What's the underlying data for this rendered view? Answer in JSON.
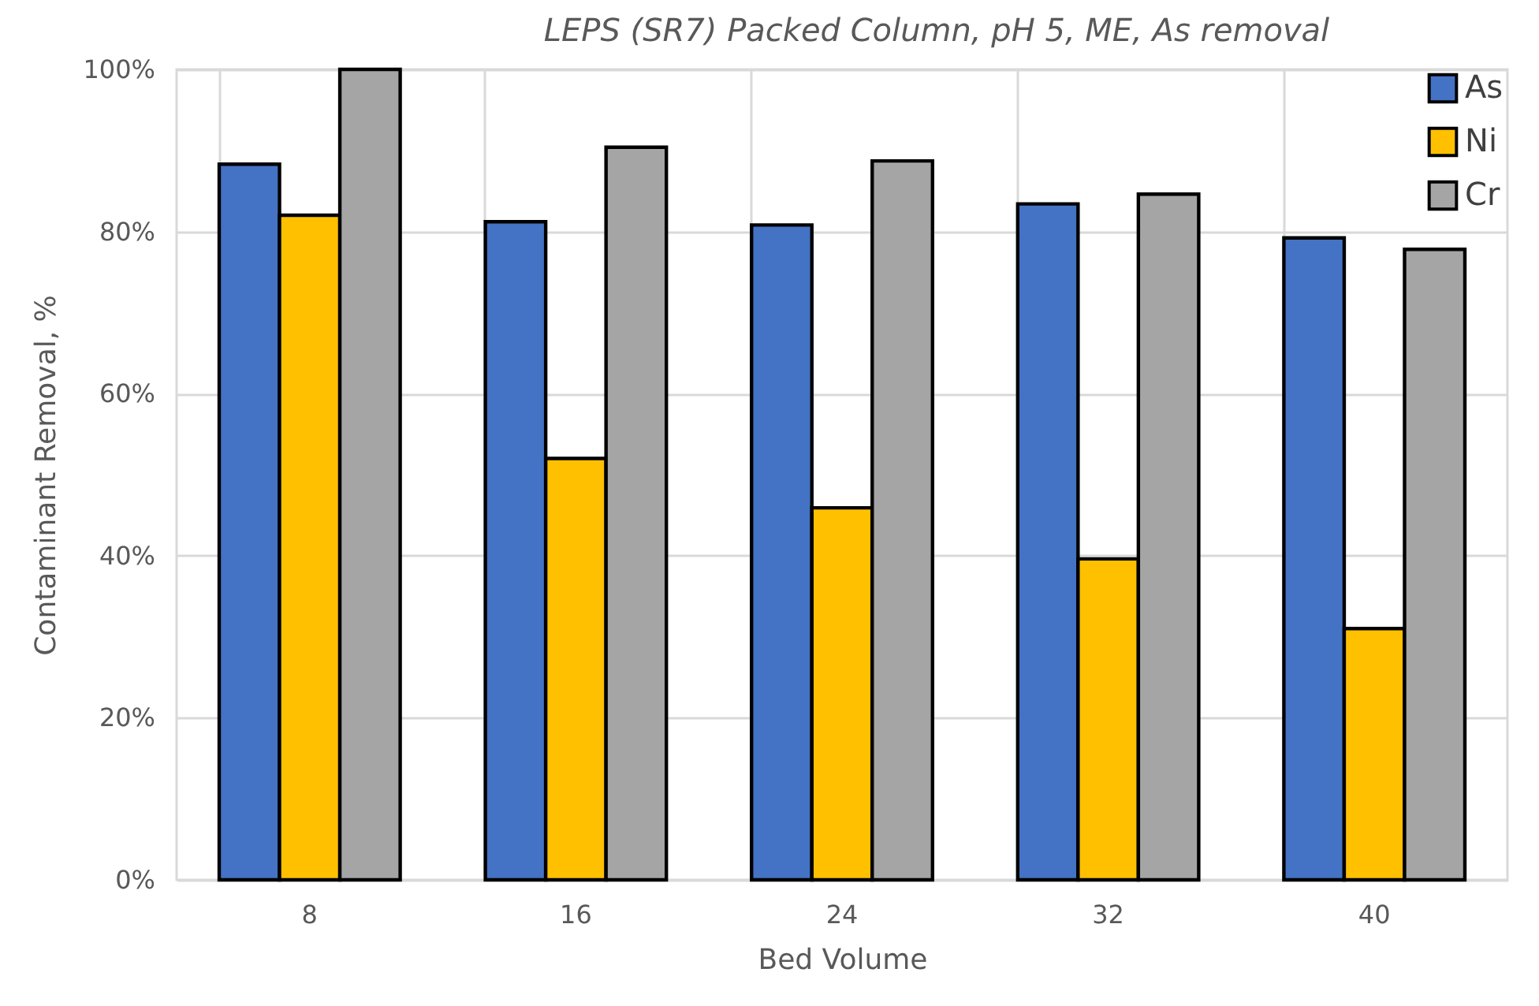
{
  "chart_data": {
    "type": "bar",
    "title": "LEPS (SR7) Packed Column, pH 5, ME, As removal",
    "xlabel": "Bed Volume",
    "ylabel": "Contaminant Removal, %",
    "categories": [
      "8",
      "16",
      "24",
      "32",
      "40"
    ],
    "series": [
      {
        "name": "As",
        "color": "#4472c4",
        "values": [
          88.3,
          81.2,
          80.8,
          83.4,
          79.2
        ]
      },
      {
        "name": "Ni",
        "color": "#ffc000",
        "values": [
          82.0,
          52.0,
          45.9,
          39.6,
          31.0
        ]
      },
      {
        "name": "Cr",
        "color": "#a5a5a5",
        "values": [
          100,
          90.4,
          88.7,
          84.6,
          77.8
        ]
      }
    ],
    "ylim": [
      0,
      100
    ],
    "yticks": [
      {
        "value": 0,
        "label": "0%"
      },
      {
        "value": 20,
        "label": "20%"
      },
      {
        "value": 40,
        "label": "40%"
      },
      {
        "value": 60,
        "label": "60%"
      },
      {
        "value": 80,
        "label": "80%"
      },
      {
        "value": 100,
        "label": "100%"
      }
    ],
    "grid": true,
    "legend": "top right"
  }
}
